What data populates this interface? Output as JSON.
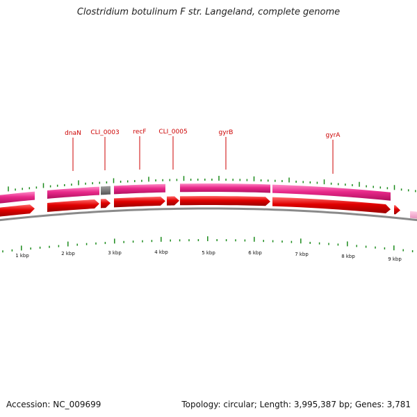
{
  "title": "Clostridium botulinum F str. Langeland, complete genome",
  "footer": {
    "accession": "Accession: NC_009699",
    "summary": "Topology: circular; Length: 3,995,387 bp; Genes: 3,781"
  },
  "gene_labels": [
    "dnaN",
    "CLI_0003",
    "recF",
    "CLI_0005",
    "gyrB",
    "gyrA"
  ],
  "kbp_labels": [
    "1 kbp",
    "2 kbp",
    "3 kbp",
    "4 kbp",
    "5 kbp",
    "6 kbp",
    "7 kbp",
    "8 kbp",
    "9 kbp"
  ],
  "colors": {
    "gene_track": "#e8298a",
    "cds_track": "#e00000",
    "pseudo_gene": "#777777",
    "tick": "#1a8a1a",
    "label": "#cc0000",
    "backbone": "#888888"
  }
}
